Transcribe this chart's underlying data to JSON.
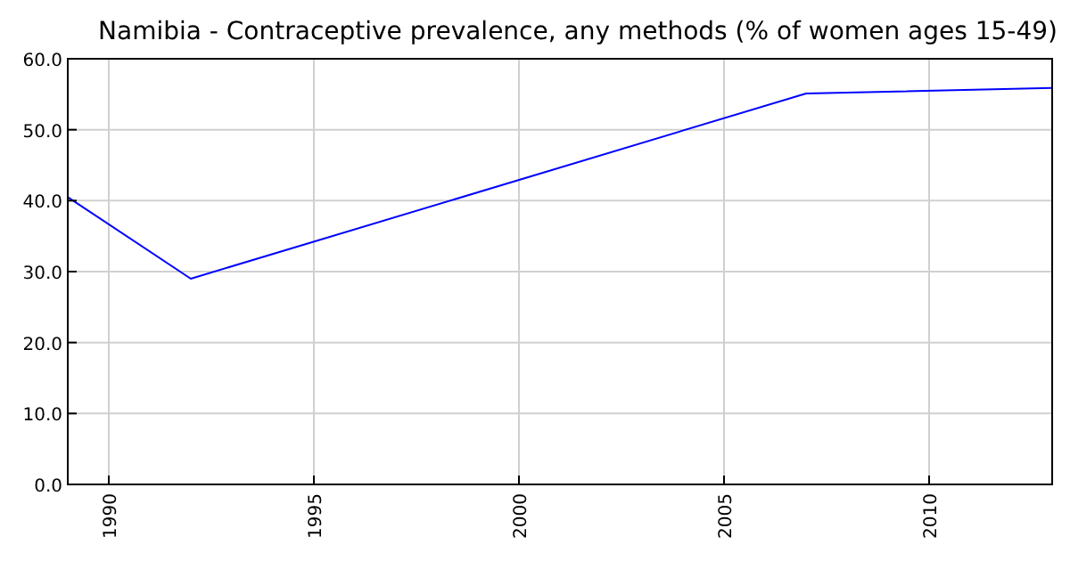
{
  "chart_data": {
    "type": "line",
    "title": "Namibia - Contraceptive prevalence, any methods (% of women ages 15-49)",
    "x": [
      1989,
      1992,
      2007,
      2013
    ],
    "series": [
      {
        "color": "#0000ff",
        "values": [
          40.5,
          29.0,
          55.1,
          55.9
        ]
      }
    ],
    "xlim": [
      1989,
      2013
    ],
    "xticks": [
      1990,
      1995,
      2000,
      2005,
      2010
    ],
    "ylim": [
      0,
      60
    ],
    "yticks": [
      {
        "value": 0,
        "label": "0.0"
      },
      {
        "value": 10,
        "label": "10.0"
      },
      {
        "value": 20,
        "label": "20.0"
      },
      {
        "value": 30,
        "label": "30.0"
      },
      {
        "value": 40,
        "label": "40.0"
      },
      {
        "value": 50,
        "label": "50.0"
      },
      {
        "value": 60,
        "label": "60.0"
      }
    ],
    "grid": true,
    "marker": "none",
    "line_style": "solid"
  }
}
